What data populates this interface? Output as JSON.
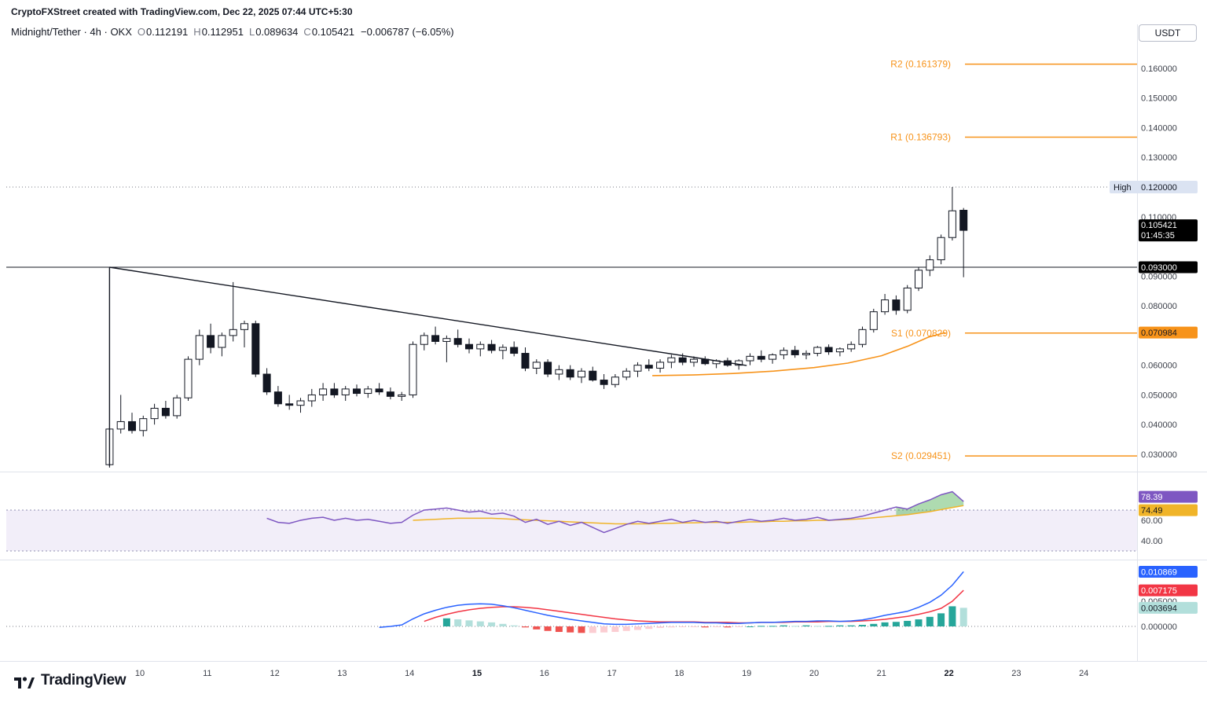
{
  "header": {
    "attribution": "CryptoFXStreet created with TradingView.com, Dec 22, 2025 07:44 UTC+5:30",
    "symbol": "Midnight/Tether · 4h · OKX",
    "ohlc": [
      {
        "label": "O",
        "value": "0.112191"
      },
      {
        "label": "H",
        "value": "0.112951"
      },
      {
        "label": "L",
        "value": "0.089634"
      },
      {
        "label": "C",
        "value": "0.105421"
      }
    ],
    "change": "−0.006787 (−6.05%)",
    "currency_button": "USDT"
  },
  "footer": {
    "logo_text": "TradingView"
  },
  "colors": {
    "orange": "#f7931a",
    "black": "#131722",
    "up_fill": "#ffffff",
    "down_fill": "#131722",
    "rsi_line": "#7e57c2",
    "rsi_ma": "#f0b429",
    "macd_line": "#2962ff",
    "signal_line": "#f23645",
    "hist_pos": "#26a69a",
    "hist_pos_light": "#b2dfdb",
    "hist_neg": "#ef5350",
    "hist_neg_light": "#fbcdd2",
    "band_fill": "rgba(126,87,194,0.10)",
    "band_line": "#8f8fb0",
    "green_fill": "rgba(76,175,80,0.45)",
    "axis_text": "#3c404a",
    "grid": "#e0e3eb",
    "muted": "#787b86",
    "high_badge_bg": "#dbe3f2",
    "white": "#ffffff"
  },
  "chart_data": {
    "type": "candlestick",
    "symbol": "Midnight/Tether",
    "interval": "4h",
    "exchange": "OKX",
    "x_axis": {
      "labels": [
        "10",
        "11",
        "12",
        "13",
        "14",
        "15",
        "16",
        "17",
        "18",
        "19",
        "20",
        "21",
        "22",
        "23",
        "24"
      ],
      "bold": [
        "15",
        "22"
      ],
      "start_day": 9.55,
      "step_days": 0.166667
    },
    "price_panel": {
      "y_ticks": [
        {
          "text": "0.160000",
          "value": 0.16
        },
        {
          "text": "0.150000",
          "value": 0.15
        },
        {
          "text": "0.140000",
          "value": 0.14
        },
        {
          "text": "0.130000",
          "value": 0.13
        },
        {
          "text": "0.110000",
          "value": 0.11
        },
        {
          "text": "0.090000",
          "value": 0.09
        },
        {
          "text": "0.080000",
          "value": 0.08
        },
        {
          "text": "0.060000",
          "value": 0.06
        },
        {
          "text": "0.050000",
          "value": 0.05
        },
        {
          "text": "0.040000",
          "value": 0.04
        },
        {
          "text": "0.030000",
          "value": 0.03
        }
      ],
      "pivots": [
        {
          "name": "R2",
          "label": "R2 (0.161379)",
          "value": 0.161379
        },
        {
          "name": "R1",
          "label": "R1 (0.136793)",
          "value": 0.136793
        },
        {
          "name": "S1",
          "label": "S1 (0.070829)",
          "value": 0.070829
        },
        {
          "name": "S2",
          "label": "S2 (0.029451)",
          "value": 0.029451
        }
      ],
      "high_line": {
        "label": "High",
        "text": "0.120000",
        "value": 0.12
      },
      "last_price": {
        "text": "0.105421",
        "countdown": "01:45:35",
        "value": 0.105421
      },
      "level_line": {
        "text": "0.093000",
        "value": 0.093
      },
      "s1_ray": {
        "text": "0.070984",
        "value": 0.070984
      },
      "trendline": {
        "x1_day": 9.55,
        "p1": 0.093,
        "x2_day": 19.0,
        "p2": 0.0599,
        "vertical_low": 0.026
      },
      "support_curve": [
        [
          17.6,
          0.0565
        ],
        [
          18.2,
          0.0567
        ],
        [
          18.8,
          0.0572
        ],
        [
          19.4,
          0.058
        ],
        [
          20.0,
          0.0592
        ],
        [
          20.5,
          0.0607
        ],
        [
          21.0,
          0.0632
        ],
        [
          21.4,
          0.0665
        ],
        [
          21.7,
          0.0695
        ],
        [
          21.95,
          0.071
        ]
      ],
      "candles": [
        [
          0.0265,
          0.039,
          0.0255,
          0.0385
        ],
        [
          0.0385,
          0.05,
          0.037,
          0.041
        ],
        [
          0.041,
          0.044,
          0.037,
          0.038
        ],
        [
          0.038,
          0.043,
          0.036,
          0.042
        ],
        [
          0.042,
          0.047,
          0.04,
          0.0455
        ],
        [
          0.0455,
          0.048,
          0.042,
          0.043
        ],
        [
          0.043,
          0.05,
          0.042,
          0.049
        ],
        [
          0.049,
          0.063,
          0.048,
          0.062
        ],
        [
          0.062,
          0.072,
          0.06,
          0.07
        ],
        [
          0.07,
          0.074,
          0.064,
          0.066
        ],
        [
          0.066,
          0.071,
          0.063,
          0.07
        ],
        [
          0.07,
          0.088,
          0.068,
          0.072
        ],
        [
          0.072,
          0.075,
          0.066,
          0.074
        ],
        [
          0.074,
          0.075,
          0.056,
          0.057
        ],
        [
          0.057,
          0.059,
          0.05,
          0.051
        ],
        [
          0.051,
          0.053,
          0.046,
          0.047
        ],
        [
          0.047,
          0.05,
          0.045,
          0.0465
        ],
        [
          0.0465,
          0.049,
          0.044,
          0.048
        ],
        [
          0.048,
          0.052,
          0.046,
          0.05
        ],
        [
          0.05,
          0.054,
          0.048,
          0.052
        ],
        [
          0.052,
          0.054,
          0.049,
          0.05
        ],
        [
          0.05,
          0.053,
          0.048,
          0.052
        ],
        [
          0.052,
          0.0535,
          0.0495,
          0.0505
        ],
        [
          0.0505,
          0.053,
          0.049,
          0.052
        ],
        [
          0.052,
          0.054,
          0.05,
          0.051
        ],
        [
          0.051,
          0.0525,
          0.0485,
          0.0495
        ],
        [
          0.0495,
          0.051,
          0.048,
          0.05
        ],
        [
          0.05,
          0.068,
          0.049,
          0.067
        ],
        [
          0.067,
          0.071,
          0.065,
          0.07
        ],
        [
          0.07,
          0.073,
          0.067,
          0.068
        ],
        [
          0.068,
          0.07,
          0.061,
          0.069
        ],
        [
          0.069,
          0.072,
          0.066,
          0.067
        ],
        [
          0.067,
          0.069,
          0.064,
          0.0655
        ],
        [
          0.0655,
          0.068,
          0.063,
          0.067
        ],
        [
          0.067,
          0.0685,
          0.064,
          0.065
        ],
        [
          0.065,
          0.067,
          0.062,
          0.066
        ],
        [
          0.066,
          0.068,
          0.063,
          0.064
        ],
        [
          0.064,
          0.066,
          0.058,
          0.059
        ],
        [
          0.059,
          0.062,
          0.057,
          0.061
        ],
        [
          0.061,
          0.062,
          0.056,
          0.057
        ],
        [
          0.057,
          0.06,
          0.055,
          0.0585
        ],
        [
          0.0585,
          0.06,
          0.055,
          0.056
        ],
        [
          0.056,
          0.059,
          0.054,
          0.058
        ],
        [
          0.058,
          0.0595,
          0.0545,
          0.055
        ],
        [
          0.055,
          0.057,
          0.052,
          0.0535
        ],
        [
          0.0535,
          0.057,
          0.0525,
          0.056
        ],
        [
          0.056,
          0.059,
          0.055,
          0.058
        ],
        [
          0.058,
          0.061,
          0.056,
          0.06
        ],
        [
          0.06,
          0.062,
          0.058,
          0.059
        ],
        [
          0.059,
          0.062,
          0.0575,
          0.061
        ],
        [
          0.061,
          0.0635,
          0.059,
          0.0625
        ],
        [
          0.0625,
          0.064,
          0.06,
          0.061
        ],
        [
          0.061,
          0.063,
          0.0595,
          0.062
        ],
        [
          0.062,
          0.063,
          0.06,
          0.0605
        ],
        [
          0.0605,
          0.062,
          0.059,
          0.0615
        ],
        [
          0.0615,
          0.0625,
          0.0595,
          0.06
        ],
        [
          0.06,
          0.062,
          0.0585,
          0.0615
        ],
        [
          0.0615,
          0.064,
          0.06,
          0.063
        ],
        [
          0.063,
          0.065,
          0.061,
          0.062
        ],
        [
          0.062,
          0.064,
          0.0605,
          0.0635
        ],
        [
          0.0635,
          0.066,
          0.062,
          0.065
        ],
        [
          0.065,
          0.0665,
          0.0625,
          0.0635
        ],
        [
          0.0635,
          0.065,
          0.062,
          0.064
        ],
        [
          0.064,
          0.0665,
          0.063,
          0.066
        ],
        [
          0.066,
          0.067,
          0.0635,
          0.0645
        ],
        [
          0.0645,
          0.066,
          0.063,
          0.0655
        ],
        [
          0.0655,
          0.068,
          0.0645,
          0.067
        ],
        [
          0.067,
          0.073,
          0.066,
          0.072
        ],
        [
          0.072,
          0.079,
          0.071,
          0.078
        ],
        [
          0.078,
          0.084,
          0.077,
          0.082
        ],
        [
          0.082,
          0.0835,
          0.077,
          0.0785
        ],
        [
          0.0785,
          0.087,
          0.0775,
          0.086
        ],
        [
          0.086,
          0.093,
          0.085,
          0.092
        ],
        [
          0.092,
          0.097,
          0.09,
          0.0955
        ],
        [
          0.0955,
          0.104,
          0.094,
          0.103
        ],
        [
          0.103,
          0.12,
          0.102,
          0.112
        ],
        [
          0.112191,
          0.112951,
          0.089634,
          0.105421
        ]
      ]
    },
    "rsi_panel": {
      "upper_band": 70,
      "lower_band": 30,
      "ticks": [
        {
          "text": "60.00",
          "value": 60
        },
        {
          "text": "40.00",
          "value": 40
        }
      ],
      "badges": [
        {
          "text": "78.39",
          "value": 78.39,
          "bg": "#7e57c2",
          "fg": "#ffffff"
        },
        {
          "text": "74.49",
          "value": 74.49,
          "bg": "#f0b429",
          "fg": "#131722"
        }
      ],
      "start_index": 14,
      "rsi": [
        62,
        58,
        57,
        60,
        62,
        63,
        60,
        62,
        60,
        61,
        59,
        57,
        58,
        65,
        70,
        71,
        72,
        70,
        68,
        69,
        66,
        67,
        64,
        58,
        61,
        56,
        59,
        55,
        58,
        53,
        48,
        52,
        56,
        59,
        57,
        59,
        61,
        58,
        60,
        58,
        59,
        57,
        59,
        61,
        59,
        60,
        62,
        60,
        61,
        63,
        60,
        61,
        62,
        64,
        67,
        70,
        73,
        71,
        76,
        80,
        85,
        88,
        78.39
      ],
      "ma_start_index": 27,
      "ma": [
        60,
        60.5,
        61,
        61.5,
        62,
        62,
        62,
        62,
        61.5,
        61,
        60.5,
        60,
        59.5,
        59,
        58.5,
        58,
        57.5,
        57,
        56.5,
        56.5,
        56.5,
        56.5,
        57,
        57,
        57.5,
        57.5,
        58,
        58,
        58,
        58,
        58.5,
        58.5,
        59,
        59,
        59.5,
        59.5,
        60,
        60,
        60.5,
        61,
        61.5,
        62.5,
        63.5,
        64.5,
        65.5,
        67,
        68.5,
        70.5,
        72.5,
        74.49
      ],
      "fill_start_index": 70
    },
    "macd_panel": {
      "ticks": [
        {
          "text": "0.005000",
          "value": 0.005
        },
        {
          "text": "0.000000",
          "value": 0
        }
      ],
      "badges": [
        {
          "text": "0.010869",
          "value": 0.010869,
          "bg": "#2962ff",
          "fg": "#ffffff"
        },
        {
          "text": "0.007175",
          "value": 0.007175,
          "bg": "#f23645",
          "fg": "#ffffff"
        },
        {
          "text": "0.003694",
          "value": 0.003694,
          "bg": "#b2dfdb",
          "fg": "#131722"
        }
      ],
      "macd_start": 24,
      "macd": [
        -0.0002,
        0.0,
        0.0003,
        0.0015,
        0.0025,
        0.0032,
        0.0038,
        0.0042,
        0.0044,
        0.0045,
        0.0044,
        0.0041,
        0.0037,
        0.0032,
        0.0027,
        0.0022,
        0.0018,
        0.0014,
        0.0011,
        0.0008,
        0.0005,
        0.0004,
        0.0004,
        0.0005,
        0.0006,
        0.0007,
        0.0008,
        0.0008,
        0.0008,
        0.0007,
        0.0007,
        0.0006,
        0.0006,
        0.0007,
        0.0008,
        0.0008,
        0.0009,
        0.001,
        0.001,
        0.0011,
        0.0011,
        0.001,
        0.0011,
        0.0013,
        0.0017,
        0.0022,
        0.0026,
        0.003,
        0.0038,
        0.0048,
        0.0062,
        0.0082,
        0.010869
      ],
      "signal_start": 28,
      "signal": [
        0.001,
        0.0018,
        0.0024,
        0.0029,
        0.0033,
        0.0036,
        0.0038,
        0.0039,
        0.0039,
        0.0038,
        0.0036,
        0.0033,
        0.003,
        0.0027,
        0.0024,
        0.0021,
        0.0018,
        0.0015,
        0.0013,
        0.0011,
        0.001,
        0.0009,
        0.0009,
        0.0009,
        0.0009,
        0.0008,
        0.0008,
        0.0008,
        0.0007,
        0.0007,
        0.0008,
        0.0008,
        0.0008,
        0.0009,
        0.0009,
        0.0009,
        0.001,
        0.001,
        0.001,
        0.0011,
        0.0012,
        0.0014,
        0.0017,
        0.002,
        0.0024,
        0.0029,
        0.0036,
        0.005,
        0.007175
      ],
      "hist_start": 30,
      "hist": [
        0.0016,
        0.0014,
        0.0012,
        0.001,
        0.0008,
        0.0005,
        0.0002,
        -0.0002,
        -0.0006,
        -0.0009,
        -0.0011,
        -0.0012,
        -0.0013,
        -0.0013,
        -0.0012,
        -0.0011,
        -0.0009,
        -0.0007,
        -0.0005,
        -0.0003,
        -0.0002,
        -0.0001,
        -0.0001,
        -0.0002,
        -0.0001,
        -0.0002,
        -0.0001,
        0.0,
        0.0001,
        0.0001,
        0.0002,
        0.0001,
        0.0002,
        0.0001,
        0.0001,
        0.0002,
        0.0002,
        0.0003,
        0.0005,
        0.0008,
        0.0009,
        0.0011,
        0.0014,
        0.0019,
        0.0026,
        0.004,
        0.003694
      ]
    }
  }
}
